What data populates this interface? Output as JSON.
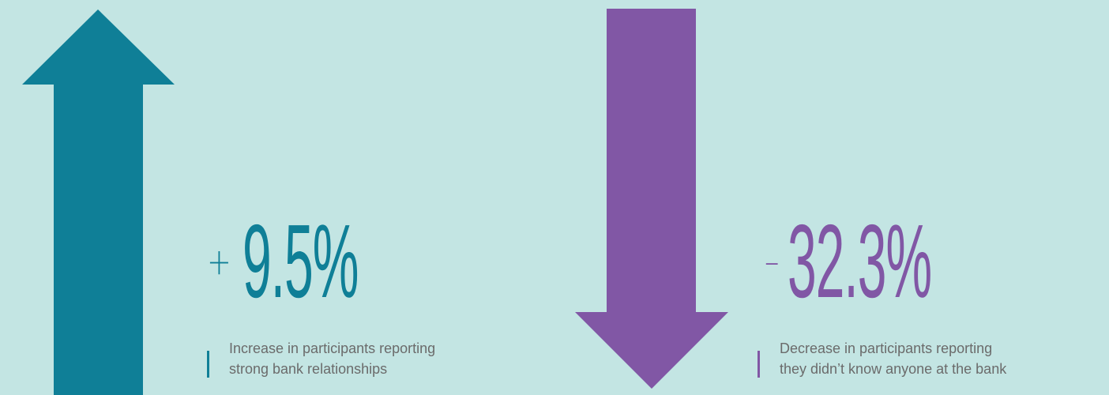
{
  "colors": {
    "background": "#c3e5e3",
    "increase": "#0f7f97",
    "decrease": "#8157a5",
    "caption": "#6b6b6b"
  },
  "increase": {
    "icon": "arrow-up-icon",
    "sign": "+",
    "value": "9.5%",
    "caption_lines": [
      "Increase in participants reporting",
      "strong bank relationships"
    ]
  },
  "decrease": {
    "icon": "arrow-down-icon",
    "sign": "–",
    "value": "32.3%",
    "caption_lines": [
      "Decrease in participants reporting",
      "they didn’t know anyone at the bank"
    ]
  }
}
